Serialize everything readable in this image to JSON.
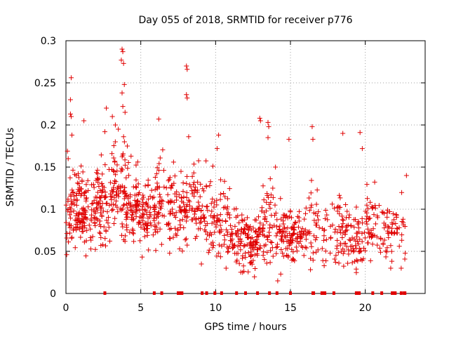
{
  "chart_data": {
    "type": "scatter",
    "title": "Day 055 of 2018, SRMTID for receiver p776",
    "xlabel": "GPS time / hours",
    "ylabel": "SRMTID / TECUs",
    "xlim": [
      0,
      24
    ],
    "ylim": [
      0,
      0.3
    ],
    "x_ticks": [
      0,
      5,
      10,
      15,
      20
    ],
    "x_tick_labels": [
      "0",
      "5",
      "10",
      "15",
      "20"
    ],
    "y_ticks": [
      0,
      0.05,
      0.1,
      0.15,
      0.2,
      0.25,
      0.3
    ],
    "y_tick_labels": [
      "0",
      "0.05",
      "0.1",
      "0.15",
      "0.2",
      "0.25",
      "0.3"
    ],
    "grid": true,
    "marker": "+",
    "color": "#e00000",
    "series": [
      {
        "name": "SRMTID",
        "outliers": [
          {
            "x": 0.35,
            "y": 0.256
          },
          {
            "x": 0.3,
            "y": 0.23
          },
          {
            "x": 0.3,
            "y": 0.213
          },
          {
            "x": 0.35,
            "y": 0.21
          },
          {
            "x": 0.4,
            "y": 0.188
          },
          {
            "x": 0.1,
            "y": 0.169
          },
          {
            "x": 0.15,
            "y": 0.16
          },
          {
            "x": 0.05,
            "y": 0.046
          },
          {
            "x": 1.2,
            "y": 0.205
          },
          {
            "x": 2.7,
            "y": 0.22
          },
          {
            "x": 2.6,
            "y": 0.192
          },
          {
            "x": 3.1,
            "y": 0.21
          },
          {
            "x": 3.3,
            "y": 0.2
          },
          {
            "x": 3.5,
            "y": 0.195
          },
          {
            "x": 3.75,
            "y": 0.29
          },
          {
            "x": 3.8,
            "y": 0.287
          },
          {
            "x": 3.7,
            "y": 0.277
          },
          {
            "x": 3.85,
            "y": 0.273
          },
          {
            "x": 3.9,
            "y": 0.248
          },
          {
            "x": 3.75,
            "y": 0.238
          },
          {
            "x": 3.8,
            "y": 0.222
          },
          {
            "x": 3.95,
            "y": 0.215
          },
          {
            "x": 3.85,
            "y": 0.186
          },
          {
            "x": 4.1,
            "y": 0.175
          },
          {
            "x": 4.35,
            "y": 0.163
          },
          {
            "x": 6.2,
            "y": 0.207
          },
          {
            "x": 8.05,
            "y": 0.27
          },
          {
            "x": 8.1,
            "y": 0.266
          },
          {
            "x": 8.05,
            "y": 0.236
          },
          {
            "x": 8.1,
            "y": 0.232
          },
          {
            "x": 8.2,
            "y": 0.186
          },
          {
            "x": 9.05,
            "y": 0.035
          },
          {
            "x": 10.2,
            "y": 0.188
          },
          {
            "x": 10.1,
            "y": 0.172
          },
          {
            "x": 10.7,
            "y": 0.03
          },
          {
            "x": 11.8,
            "y": 0.025
          },
          {
            "x": 12.95,
            "y": 0.208
          },
          {
            "x": 13.0,
            "y": 0.205
          },
          {
            "x": 13.5,
            "y": 0.203
          },
          {
            "x": 13.55,
            "y": 0.198
          },
          {
            "x": 13.5,
            "y": 0.185
          },
          {
            "x": 14.0,
            "y": 0.15
          },
          {
            "x": 14.35,
            "y": 0.023
          },
          {
            "x": 14.15,
            "y": 0.015
          },
          {
            "x": 14.9,
            "y": 0.183
          },
          {
            "x": 16.45,
            "y": 0.198
          },
          {
            "x": 16.5,
            "y": 0.183
          },
          {
            "x": 18.5,
            "y": 0.19
          },
          {
            "x": 19.65,
            "y": 0.191
          },
          {
            "x": 19.8,
            "y": 0.172
          },
          {
            "x": 21.7,
            "y": 0.03
          },
          {
            "x": 22.4,
            "y": 0.03
          },
          {
            "x": 22.75,
            "y": 0.14
          }
        ]
      }
    ],
    "density_profile": [
      {
        "x0": 0.0,
        "x1": 1.0,
        "center": 0.1,
        "spread": 0.03,
        "points": 80
      },
      {
        "x0": 1.0,
        "x1": 2.0,
        "center": 0.095,
        "spread": 0.03,
        "points": 75
      },
      {
        "x0": 2.0,
        "x1": 3.0,
        "center": 0.11,
        "spread": 0.035,
        "points": 75
      },
      {
        "x0": 3.0,
        "x1": 4.0,
        "center": 0.125,
        "spread": 0.035,
        "points": 75
      },
      {
        "x0": 4.0,
        "x1": 5.0,
        "center": 0.105,
        "spread": 0.03,
        "points": 80
      },
      {
        "x0": 5.0,
        "x1": 6.0,
        "center": 0.095,
        "spread": 0.03,
        "points": 70
      },
      {
        "x0": 6.0,
        "x1": 7.0,
        "center": 0.105,
        "spread": 0.035,
        "points": 60
      },
      {
        "x0": 7.0,
        "x1": 8.0,
        "center": 0.1,
        "spread": 0.03,
        "points": 55
      },
      {
        "x0": 8.0,
        "x1": 9.0,
        "center": 0.105,
        "spread": 0.03,
        "points": 60
      },
      {
        "x0": 9.0,
        "x1": 10.0,
        "center": 0.09,
        "spread": 0.03,
        "points": 50
      },
      {
        "x0": 10.0,
        "x1": 11.0,
        "center": 0.085,
        "spread": 0.03,
        "points": 55
      },
      {
        "x0": 11.0,
        "x1": 12.0,
        "center": 0.07,
        "spread": 0.025,
        "points": 60
      },
      {
        "x0": 12.0,
        "x1": 13.0,
        "center": 0.06,
        "spread": 0.02,
        "points": 75
      },
      {
        "x0": 13.0,
        "x1": 14.0,
        "center": 0.085,
        "spread": 0.03,
        "points": 55
      },
      {
        "x0": 14.0,
        "x1": 15.0,
        "center": 0.075,
        "spread": 0.025,
        "points": 60
      },
      {
        "x0": 15.0,
        "x1": 16.0,
        "center": 0.065,
        "spread": 0.02,
        "points": 60
      },
      {
        "x0": 16.0,
        "x1": 17.0,
        "center": 0.08,
        "spread": 0.03,
        "points": 40
      },
      {
        "x0": 17.0,
        "x1": 18.0,
        "center": 0.075,
        "spread": 0.03,
        "points": 25
      },
      {
        "x0": 18.0,
        "x1": 19.0,
        "center": 0.07,
        "spread": 0.025,
        "points": 55
      },
      {
        "x0": 19.0,
        "x1": 20.0,
        "center": 0.065,
        "spread": 0.025,
        "points": 50
      },
      {
        "x0": 20.0,
        "x1": 21.0,
        "center": 0.085,
        "spread": 0.03,
        "points": 45
      },
      {
        "x0": 21.0,
        "x1": 22.0,
        "center": 0.075,
        "spread": 0.025,
        "points": 40
      },
      {
        "x0": 22.0,
        "x1": 22.7,
        "center": 0.07,
        "spread": 0.03,
        "points": 20
      }
    ],
    "zero_markers_x": [
      2.6,
      5.9,
      6.4,
      7.5,
      7.6,
      7.7,
      7.75,
      9.1,
      9.4,
      9.95,
      10.4,
      11.4,
      12.0,
      12.8,
      13.6,
      14.1,
      15.0,
      16.5,
      16.55,
      17.1,
      17.2,
      17.3,
      17.9,
      19.4,
      19.5,
      19.55,
      19.6,
      20.5,
      21.1,
      21.8,
      21.9,
      22.0,
      22.4,
      22.6,
      22.65
    ]
  }
}
